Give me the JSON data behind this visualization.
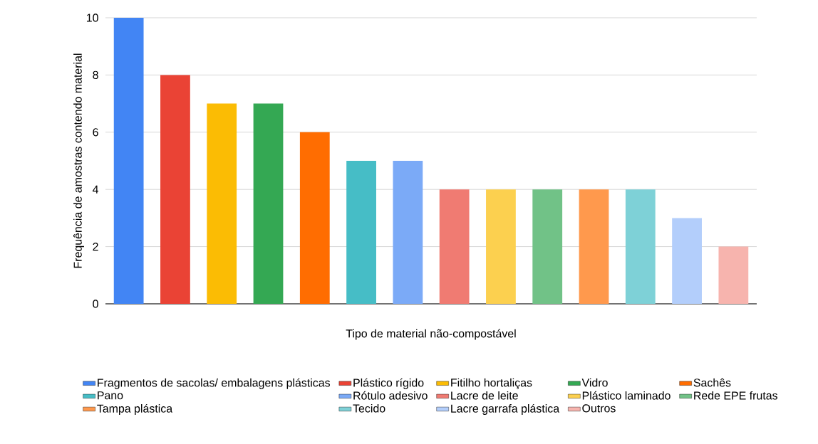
{
  "chart_data": {
    "type": "bar",
    "xlabel": "Tipo de material não-compostável",
    "ylabel": "Frequência de amostras contendo material",
    "categories": [
      null,
      null,
      null,
      null,
      null,
      null,
      null,
      null,
      null,
      null,
      null,
      null,
      null,
      null
    ],
    "series": [
      {
        "name": "Fragmentos de sacolas/ embalagens plásticas",
        "color": "#4285f4",
        "values": [
          10,
          null,
          null,
          null,
          null,
          null,
          null,
          null,
          null,
          null,
          null,
          null,
          null,
          null
        ]
      },
      {
        "name": "Plástico rígido",
        "color": "#ea4335",
        "values": [
          null,
          8,
          null,
          null,
          null,
          null,
          null,
          null,
          null,
          null,
          null,
          null,
          null,
          null
        ]
      },
      {
        "name": "Fitilho hortaliças",
        "color": "#fbbc04",
        "values": [
          null,
          null,
          7,
          null,
          null,
          null,
          null,
          null,
          null,
          null,
          null,
          null,
          null,
          null
        ]
      },
      {
        "name": "Vidro",
        "color": "#34a853",
        "values": [
          null,
          null,
          null,
          7,
          null,
          null,
          null,
          null,
          null,
          null,
          null,
          null,
          null,
          null
        ]
      },
      {
        "name": "Sachês",
        "color": "#ff6d01",
        "values": [
          null,
          null,
          null,
          null,
          6,
          null,
          null,
          null,
          null,
          null,
          null,
          null,
          null,
          null
        ]
      },
      {
        "name": "Pano",
        "color": "#46bdc6",
        "values": [
          null,
          null,
          null,
          null,
          null,
          5,
          null,
          null,
          null,
          null,
          null,
          null,
          null,
          null
        ]
      },
      {
        "name": "Rótulo adesivo",
        "color": "#7baaf7",
        "values": [
          null,
          null,
          null,
          null,
          null,
          null,
          5,
          null,
          null,
          null,
          null,
          null,
          null,
          null
        ]
      },
      {
        "name": "Lacre de leite",
        "color": "#f07b72",
        "values": [
          null,
          null,
          null,
          null,
          null,
          null,
          null,
          4,
          null,
          null,
          null,
          null,
          null,
          null
        ]
      },
      {
        "name": "Plástico laminado",
        "color": "#fcd04f",
        "values": [
          null,
          null,
          null,
          null,
          null,
          null,
          null,
          null,
          4,
          null,
          null,
          null,
          null,
          null
        ]
      },
      {
        "name": "Rede EPE frutas",
        "color": "#71c287",
        "values": [
          null,
          null,
          null,
          null,
          null,
          null,
          null,
          null,
          null,
          4,
          null,
          null,
          null,
          null
        ]
      },
      {
        "name": "Tampa plástica",
        "color": "#ff994d",
        "values": [
          null,
          null,
          null,
          null,
          null,
          null,
          null,
          null,
          null,
          null,
          4,
          null,
          null,
          null
        ]
      },
      {
        "name": "Tecido",
        "color": "#7ed1d7",
        "values": [
          null,
          null,
          null,
          null,
          null,
          null,
          null,
          null,
          null,
          null,
          null,
          4,
          null,
          null
        ]
      },
      {
        "name": "Lacre garrafa plástica",
        "color": "#b3cefb",
        "values": [
          null,
          null,
          null,
          null,
          null,
          null,
          null,
          null,
          null,
          null,
          null,
          null,
          3,
          null
        ]
      },
      {
        "name": "Outros",
        "color": "#f7b4ae",
        "values": [
          null,
          null,
          null,
          null,
          null,
          null,
          null,
          null,
          null,
          null,
          null,
          null,
          null,
          2
        ]
      }
    ],
    "ylim": [
      0,
      10
    ],
    "yticks": [
      0,
      2,
      4,
      6,
      8,
      10
    ],
    "grid": "y",
    "legend": "bottom"
  }
}
